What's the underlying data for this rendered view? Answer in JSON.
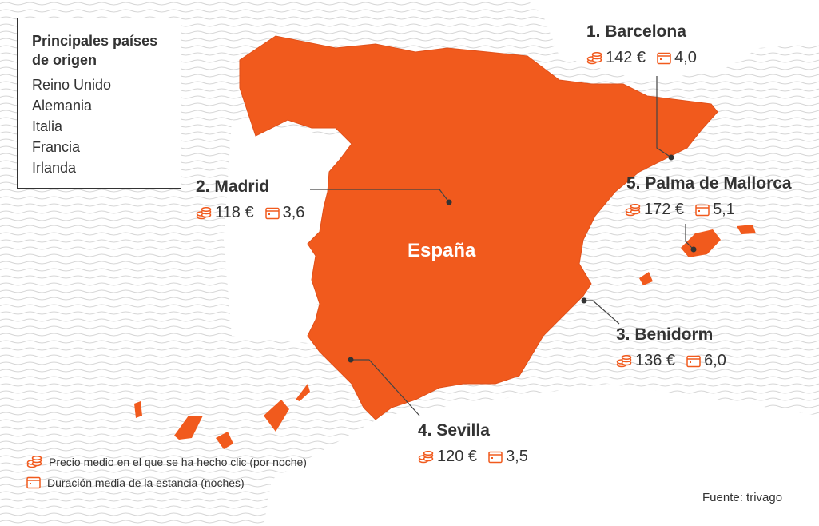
{
  "legend_box": {
    "title": "Principales países de origen",
    "items": [
      "Reino Unido",
      "Alemania",
      "Italia",
      "Francia",
      "Irlanda"
    ]
  },
  "country_label": "España",
  "cities": [
    {
      "name": "1. Barcelona",
      "price": "142 €",
      "stay": "4,0"
    },
    {
      "name": "2. Madrid",
      "price": "118 €",
      "stay": "3,6"
    },
    {
      "name": "3. Benidorm",
      "price": "136 €",
      "stay": "6,0"
    },
    {
      "name": "4. Sevilla",
      "price": "120 €",
      "stay": "3,5"
    },
    {
      "name": "5. Palma de Mallorca",
      "price": "172 €",
      "stay": "5,1"
    }
  ],
  "key": {
    "price": "Precio medio en el que se ha hecho clic (por noche)",
    "stay": "Duración media de la estancia (noches)"
  },
  "source": "Fuente: trivago"
}
